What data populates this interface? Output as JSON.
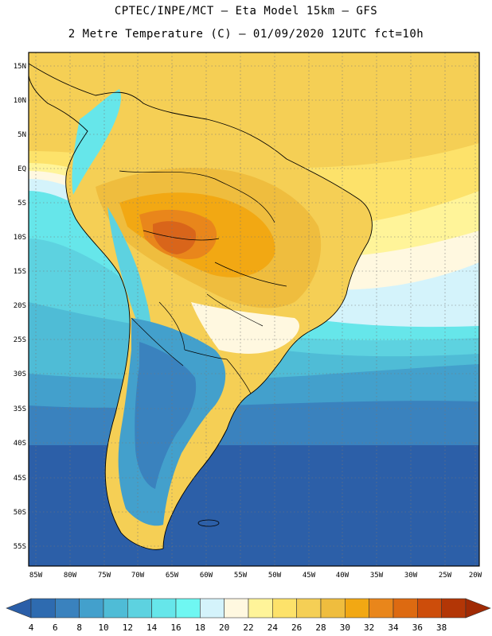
{
  "header": {
    "line1": "CPTEC/INPE/MCT –  Eta Model 15km – GFS",
    "line2": "2 Metre Temperature (C) – 01/09/2020 12UTC fct=10h"
  },
  "axes": {
    "lat_labels": [
      "15N",
      "10N",
      "5N",
      "EQ",
      "5S",
      "10S",
      "15S",
      "20S",
      "25S",
      "30S",
      "35S",
      "40S",
      "45S",
      "50S",
      "55S"
    ],
    "lon_labels": [
      "85W",
      "80W",
      "75W",
      "70W",
      "65W",
      "60W",
      "55W",
      "50W",
      "45W",
      "40W",
      "35W",
      "30W",
      "25W",
      "20W"
    ]
  },
  "colorbar": {
    "labels": [
      "4",
      "6",
      "8",
      "10",
      "12",
      "14",
      "16",
      "18",
      "20",
      "22",
      "24",
      "26",
      "28",
      "30",
      "32",
      "34",
      "36",
      "38"
    ],
    "colors": [
      "#2e6bb0",
      "#3a82be",
      "#43a0cc",
      "#4fbcd6",
      "#5dd2e0",
      "#66e6ea",
      "#6ff7f2",
      "#d4f3fb",
      "#fff8e0",
      "#fff499",
      "#fde26a",
      "#f5cf55",
      "#efbd3e",
      "#f2a813",
      "#e9861b",
      "#dd6a11",
      "#cd4d0a",
      "#b33606"
    ],
    "low_color": "#2a5ea8",
    "high_color": "#a02a04"
  },
  "legend_colors": {
    "ocean_south": "#2c5fa8",
    "ocean_mid": "#3f96c8",
    "ocean_cyan": "#55cde0",
    "ocean_warm": "#f8d968",
    "land_hot": "#d9651a"
  }
}
